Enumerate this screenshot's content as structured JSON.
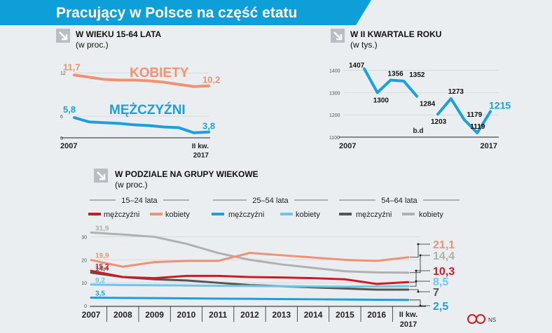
{
  "header": {
    "title": "Pracujący w Polsce na część etatu"
  },
  "colors": {
    "header_bg": "#0f9fd8",
    "women": "#ef9272",
    "men_blue": "#1aa0dc",
    "light_blue": "#6cc6ec",
    "red": "#d01a23",
    "dark_gray": "#555555",
    "light_gray": "#b0b0b0",
    "background": "#ebeef0"
  },
  "footer": {
    "credit": "NS",
    "logo_icon": "cc-by-nd-icon"
  },
  "chart_data": [
    {
      "id": "age-15-64",
      "type": "line",
      "title": "W WIEKU 15-64 LATA",
      "subtitle": "(w proc.)",
      "y_ticks": [
        "12",
        "6",
        "3"
      ],
      "ylim": [
        3,
        12.5
      ],
      "x_labels": [
        "2007",
        "II kw.",
        "2017"
      ],
      "series": [
        {
          "name": "KOBIETY",
          "color": "#ef9272",
          "start_label": "11,7",
          "end_label": "10,2",
          "values": [
            11.7,
            11.4,
            11.1,
            11.0,
            11.0,
            10.9,
            10.7,
            10.4,
            10.1,
            10.2
          ]
        },
        {
          "name": "MĘŻCZYŹNI",
          "color": "#1aa0dc",
          "start_label": "5,8",
          "end_label": "3,8",
          "values": [
            5.8,
            5.2,
            5.1,
            5.0,
            4.8,
            4.7,
            4.5,
            4.4,
            3.7,
            3.8
          ]
        }
      ]
    },
    {
      "id": "q2",
      "type": "line",
      "title": "W II KWARTALE ROKU",
      "subtitle": "(w tys.)",
      "y_ticks": [
        "1400",
        "1300",
        "1200",
        "1100"
      ],
      "ylim": [
        1100,
        1430
      ],
      "x_labels": [
        "2007",
        "2017"
      ],
      "gap_label": "b.d",
      "series": [
        {
          "name": "",
          "color": "#1aa0dc",
          "segments": [
            [
              [
                2007,
                1407
              ],
              [
                2008,
                1300
              ],
              [
                2009,
                1356
              ],
              [
                2010,
                1352
              ],
              [
                2011,
                1284
              ]
            ],
            [
              [
                2012.6,
                1203
              ],
              [
                2013.6,
                1273
              ],
              [
                2014.6,
                1179
              ],
              [
                2015.6,
                1119
              ],
              [
                2016.6,
                1215
              ]
            ]
          ],
          "point_labels": [
            "1407",
            "1300",
            "1356",
            "1352",
            "1284",
            "1203",
            "1273",
            "1179",
            "1119",
            "1215"
          ]
        }
      ]
    },
    {
      "id": "age-groups",
      "type": "line",
      "title": "W PODZIALE NA GRUPY WIEKOWE",
      "subtitle": "(w proc.)",
      "y_ticks": [
        "30",
        "20",
        "10",
        "0"
      ],
      "ylim": [
        0,
        32
      ],
      "categories": [
        "2007",
        "2008",
        "2009",
        "2010",
        "2011",
        "2012",
        "2013",
        "2014",
        "2015",
        "2016",
        "II kw. 2017"
      ],
      "x_labels": [
        "2007",
        "2008",
        "2009",
        "2010",
        "2011",
        "2012",
        "2013",
        "2014",
        "2015",
        "2016",
        "II kw.",
        "2017"
      ],
      "groups": [
        {
          "label": "15–24 lata",
          "items": [
            "mężczyźni",
            "kobiety"
          ]
        },
        {
          "label": "25–54 lata",
          "items": [
            "mężczyźni",
            "kobiety"
          ]
        },
        {
          "label": "54–64 lata",
          "items": [
            "mężczyźni",
            "kobiety"
          ]
        }
      ],
      "series": [
        {
          "name": "mężczyźni",
          "group": "15–24 lata",
          "color": "#d01a23",
          "start_label": "15,2",
          "end_label": "10,3",
          "values": [
            15.2,
            12.5,
            12.0,
            13.0,
            13.0,
            12.5,
            12.3,
            12.0,
            11.5,
            9.5,
            10.3
          ]
        },
        {
          "name": "kobiety",
          "group": "15–24 lata",
          "color": "#ef9272",
          "start_label": "19,9",
          "end_label": "21,1",
          "values": [
            19.9,
            17.0,
            19.0,
            19.5,
            19.5,
            23.0,
            22.0,
            21.0,
            20.0,
            19.5,
            21.1
          ]
        },
        {
          "name": "mężczyźni",
          "group": "25–54 lata",
          "color": "#1aa0dc",
          "start_label": "3,5",
          "end_label": "2,5",
          "values": [
            3.5,
            3.4,
            3.3,
            3.2,
            3.1,
            3.0,
            2.9,
            2.8,
            2.7,
            2.6,
            2.5
          ]
        },
        {
          "name": "kobiety",
          "group": "25–54 lata",
          "color": "#6cc6ec",
          "start_label": "9,2",
          "end_label": "8,5",
          "values": [
            9.2,
            9.0,
            8.9,
            8.8,
            8.7,
            8.6,
            8.5,
            8.4,
            8.3,
            8.4,
            8.5
          ]
        },
        {
          "name": "mężczyźni",
          "group": "54–64 lata",
          "color": "#555555",
          "start_label": "14,4",
          "end_label": "7",
          "values": [
            14.4,
            12.5,
            11.5,
            11.0,
            10.0,
            9.0,
            8.5,
            8.0,
            7.5,
            7.0,
            7.0
          ]
        },
        {
          "name": "kobiety",
          "group": "54–64 lata",
          "color": "#b0b0b0",
          "start_label": "31,9",
          "end_label": "14,4",
          "values": [
            31.9,
            31.0,
            30.0,
            27.0,
            23.0,
            20.0,
            18.0,
            16.5,
            15.0,
            14.5,
            14.4
          ]
        }
      ]
    }
  ]
}
